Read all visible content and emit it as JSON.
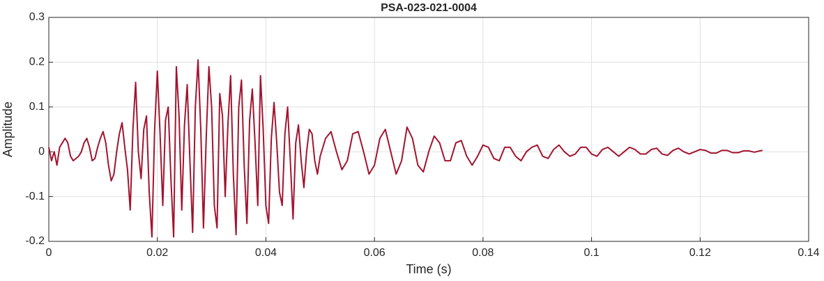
{
  "chart_data": {
    "type": "line",
    "title": "PSA-023-021-0004",
    "xlabel": "Time (s)",
    "ylabel": "Amplitude",
    "xlim": [
      0,
      0.14
    ],
    "xticks": [
      0,
      0.02,
      0.04,
      0.06,
      0.08,
      0.1,
      0.12,
      0.14
    ],
    "ylim": [
      -0.2,
      0.3
    ],
    "yticks": [
      -0.2,
      -0.1,
      0,
      0.1,
      0.2,
      0.3
    ],
    "grid": true,
    "x": [
      0,
      0.0005,
      0.001,
      0.0015,
      0.002,
      0.0025,
      0.003,
      0.0035,
      0.004,
      0.0045,
      0.005,
      0.0055,
      0.006,
      0.0065,
      0.007,
      0.0075,
      0.008,
      0.0085,
      0.009,
      0.0095,
      0.01,
      0.0105,
      0.011,
      0.0115,
      0.012,
      0.0125,
      0.013,
      0.0135,
      0.014,
      0.0145,
      0.015,
      0.0155,
      0.016,
      0.0165,
      0.017,
      0.0175,
      0.018,
      0.0185,
      0.019,
      0.0195,
      0.02,
      0.0205,
      0.021,
      0.0215,
      0.022,
      0.0225,
      0.023,
      0.0235,
      0.024,
      0.0245,
      0.025,
      0.0255,
      0.026,
      0.0265,
      0.027,
      0.0275,
      0.028,
      0.0285,
      0.029,
      0.0295,
      0.03,
      0.0305,
      0.031,
      0.0315,
      0.032,
      0.0325,
      0.033,
      0.0335,
      0.034,
      0.0345,
      0.035,
      0.0355,
      0.036,
      0.0365,
      0.037,
      0.0375,
      0.038,
      0.0385,
      0.039,
      0.0395,
      0.04,
      0.0405,
      0.041,
      0.0415,
      0.042,
      0.0425,
      0.043,
      0.0435,
      0.044,
      0.0445,
      0.045,
      0.0455,
      0.046,
      0.0465,
      0.047,
      0.0475,
      0.048,
      0.0485,
      0.049,
      0.0495,
      0.05,
      0.051,
      0.052,
      0.053,
      0.054,
      0.055,
      0.056,
      0.057,
      0.058,
      0.059,
      0.06,
      0.061,
      0.062,
      0.063,
      0.064,
      0.065,
      0.066,
      0.067,
      0.068,
      0.069,
      0.07,
      0.071,
      0.072,
      0.073,
      0.074,
      0.075,
      0.076,
      0.077,
      0.078,
      0.079,
      0.08,
      0.081,
      0.082,
      0.083,
      0.084,
      0.085,
      0.086,
      0.087,
      0.088,
      0.089,
      0.09,
      0.091,
      0.092,
      0.093,
      0.094,
      0.095,
      0.096,
      0.097,
      0.098,
      0.099,
      0.1,
      0.101,
      0.102,
      0.103,
      0.104,
      0.105,
      0.106,
      0.107,
      0.108,
      0.109,
      0.11,
      0.111,
      0.112,
      0.113,
      0.114,
      0.115,
      0.116,
      0.117,
      0.118,
      0.119,
      0.12,
      0.121,
      0.122,
      0.123,
      0.124,
      0.125,
      0.126,
      0.127,
      0.128,
      0.129,
      0.13,
      0.131,
      0.1315
    ],
    "series": [
      {
        "name": "PSA-023-021-0004",
        "color": "#a2142f",
        "values": [
          0.01,
          -0.02,
          0.0,
          -0.03,
          0.01,
          0.02,
          0.03,
          0.02,
          -0.01,
          -0.02,
          -0.015,
          -0.01,
          0.0,
          0.02,
          0.03,
          0.01,
          -0.02,
          -0.015,
          0.01,
          0.03,
          0.045,
          0.02,
          -0.03,
          -0.065,
          -0.05,
          0.0,
          0.04,
          0.065,
          0.01,
          -0.04,
          -0.13,
          0.05,
          0.155,
          0.0,
          -0.06,
          0.05,
          0.08,
          -0.09,
          -0.19,
          0.05,
          0.18,
          0.04,
          -0.12,
          0.07,
          0.1,
          -0.06,
          -0.19,
          0.19,
          0.08,
          -0.13,
          0.06,
          0.15,
          -0.02,
          -0.18,
          0.1,
          0.205,
          0.05,
          -0.17,
          0.03,
          0.19,
          0.1,
          -0.12,
          -0.17,
          0.13,
          0.08,
          -0.1,
          0.06,
          0.17,
          -0.05,
          -0.185,
          0.1,
          0.16,
          -0.03,
          -0.16,
          0.07,
          0.14,
          0.02,
          -0.12,
          0.17,
          0.05,
          -0.12,
          -0.16,
          0.03,
          0.11,
          0.02,
          -0.09,
          -0.12,
          0.04,
          0.1,
          -0.02,
          -0.15,
          0.02,
          0.06,
          -0.02,
          -0.08,
          0.0,
          0.05,
          0.04,
          -0.02,
          -0.05,
          -0.01,
          0.03,
          0.045,
          0.0,
          -0.04,
          -0.02,
          0.04,
          0.045,
          0.0,
          -0.05,
          -0.03,
          0.03,
          0.05,
          0.0,
          -0.05,
          -0.02,
          0.055,
          0.03,
          -0.03,
          -0.045,
          0.0,
          0.035,
          0.02,
          -0.02,
          -0.02,
          0.02,
          0.025,
          -0.01,
          -0.03,
          -0.01,
          0.015,
          0.01,
          -0.015,
          -0.02,
          0.01,
          0.01,
          -0.01,
          -0.02,
          0.0,
          0.01,
          0.015,
          -0.01,
          -0.015,
          0.005,
          0.015,
          0.0,
          -0.01,
          -0.005,
          0.01,
          0.01,
          -0.005,
          -0.01,
          0.005,
          0.01,
          0.0,
          -0.01,
          0.0,
          0.01,
          0.005,
          -0.005,
          -0.005,
          0.005,
          0.008,
          -0.005,
          -0.008,
          0.003,
          0.008,
          0.0,
          -0.005,
          0.0,
          0.005,
          0.003,
          -0.003,
          -0.003,
          0.003,
          0.003,
          -0.002,
          -0.002,
          0.002,
          0.002,
          -0.001,
          0.002,
          0.003
        ]
      }
    ]
  }
}
